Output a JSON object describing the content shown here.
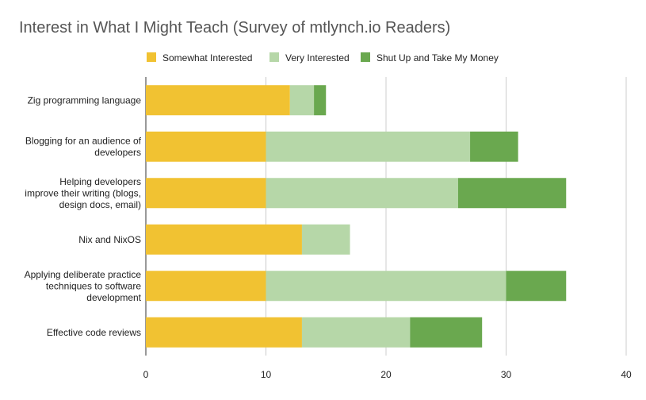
{
  "chart_data": {
    "type": "bar",
    "orientation": "horizontal",
    "stacked": true,
    "title": "Interest in What I Might Teach (Survey of mtlynch.io Readers)",
    "categories": [
      [
        "Zig programming language"
      ],
      [
        "Blogging for an audience of",
        "developers"
      ],
      [
        "Helping developers",
        "improve their writing (blogs,",
        "design docs, email)"
      ],
      [
        "Nix and NixOS"
      ],
      [
        "Applying deliberate practice",
        "techniques to software",
        "development"
      ],
      [
        "Effective code reviews"
      ]
    ],
    "series": [
      {
        "name": "Somewhat Interested",
        "color": "#f1c232",
        "values": [
          12,
          10,
          10,
          13,
          10,
          13
        ]
      },
      {
        "name": "Very Interested",
        "color": "#b6d7a8",
        "values": [
          2,
          17,
          16,
          4,
          20,
          9
        ]
      },
      {
        "name": "Shut Up and Take My Money",
        "color": "#6aa84f",
        "values": [
          1,
          4,
          9,
          0,
          5,
          6
        ]
      }
    ],
    "xlim": [
      0,
      40
    ],
    "xticks": [
      "0",
      "10",
      "20",
      "30",
      "40"
    ],
    "grid": true,
    "legend_position": "top"
  }
}
